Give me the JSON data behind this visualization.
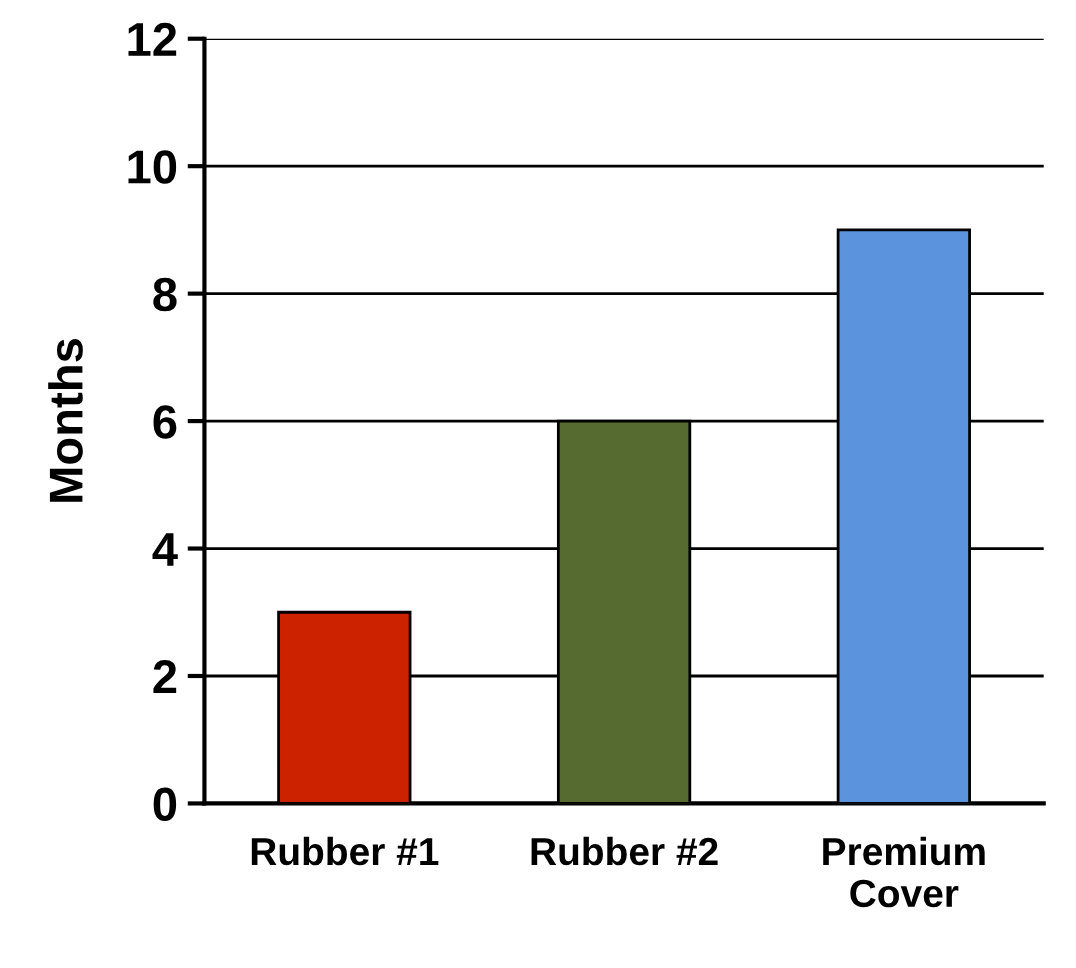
{
  "chart_data": {
    "type": "bar",
    "ylabel": "Months",
    "categories": [
      "Rubber #1",
      "Rubber #2",
      "Premium\nCover"
    ],
    "values": [
      3,
      6,
      9
    ],
    "colors": [
      "#cc2200",
      "#556b2f",
      "#5b93dd"
    ],
    "ylim": [
      0,
      12
    ],
    "yticks": [
      0,
      2,
      4,
      6,
      8,
      10,
      12
    ],
    "grid": "y"
  }
}
